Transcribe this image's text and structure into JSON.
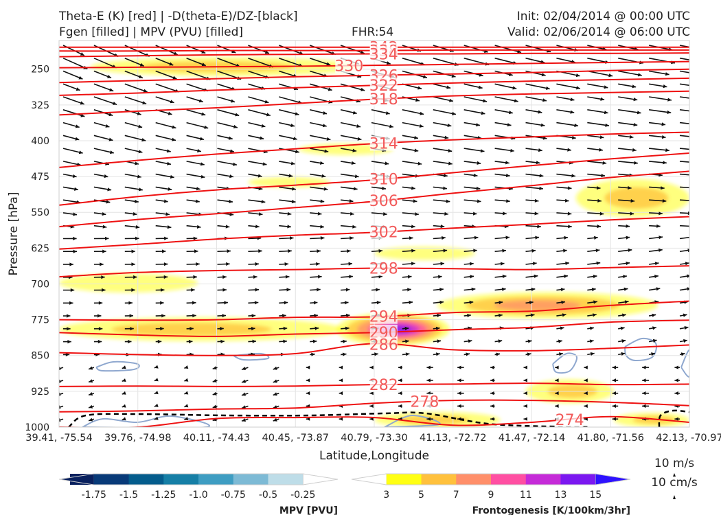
{
  "header": {
    "title_line1": "Theta-E (K) [red] | -D(theta-E)/DZ-[black]",
    "title_line2": "Fgen [filled] | MPV (PVU) [filled]",
    "fhr": "FHR:54",
    "init": "Init: 02/04/2014 @ 00:00 UTC",
    "valid": "Valid: 02/06/2014 @ 06:00 UTC"
  },
  "chart_data": {
    "type": "cross-section",
    "xlabel": "Latitude,Longitude",
    "ylabel": "Pressure [hPa]",
    "x_ticks": [
      "39.41, -75.54",
      "39.76, -74.98",
      "40.11, -74.43",
      "40.45, -73.87",
      "40.79, -73.30",
      "41.13, -72.72",
      "41.47, -72.14",
      "41.80, -71.56",
      "42.13, -70.97"
    ],
    "y_ticks": [
      250,
      325,
      400,
      475,
      550,
      625,
      700,
      775,
      850,
      925,
      1000
    ],
    "ylim": [
      1000,
      190
    ],
    "theta_e_contours": [
      {
        "label": "342",
        "y": [
          204,
          204,
          204,
          204,
          204,
          204,
          204,
          204,
          204
        ]
      },
      {
        "label": "338",
        "y": [
          212,
          212,
          211,
          211,
          211,
          210,
          210,
          210,
          210
        ]
      },
      {
        "label": "334",
        "y": [
          224,
          222,
          220,
          219,
          218,
          218,
          217,
          217,
          216
        ]
      },
      {
        "label": "330",
        "y": [
          247,
          246,
          245,
          244,
          242,
          240,
          238,
          236,
          234
        ]
      },
      {
        "label": "326",
        "y": [
          278,
          274,
          270,
          266,
          263,
          260,
          257,
          253,
          250
        ]
      },
      {
        "label": "322",
        "y": [
          305,
          300,
          294,
          289,
          284,
          279,
          275,
          272,
          269
        ]
      },
      {
        "label": "318",
        "y": [
          346,
          338,
          331,
          322,
          313,
          306,
          302,
          299,
          296
        ]
      },
      {
        "label": "314",
        "y": [
          456,
          441,
          428,
          417,
          406,
          398,
          392,
          386,
          382
        ]
      },
      {
        "label": "310",
        "y": [
          535,
          517,
          503,
          493,
          482,
          467,
          452,
          438,
          426
        ]
      },
      {
        "label": "306",
        "y": [
          580,
          565,
          553,
          540,
          527,
          510,
          494,
          477,
          464
        ]
      },
      {
        "label": "302",
        "y": [
          627,
          617,
          606,
          598,
          592,
          583,
          575,
          566,
          559
        ]
      },
      {
        "label": "298",
        "y": [
          685,
          676,
          672,
          670,
          667,
          668,
          670,
          666,
          662
        ]
      },
      {
        "label": "294",
        "y": [
          775,
          776,
          775,
          770,
          769,
          760,
          757,
          745,
          736
        ]
      },
      {
        "label": "290",
        "y": [
          802,
          807,
          810,
          805,
          802,
          796,
          791,
          780,
          776
        ]
      },
      {
        "label": "286",
        "y": [
          844,
          848,
          850,
          846,
          825,
          838,
          840,
          835,
          828
        ]
      },
      {
        "label": "282",
        "y": [
          915,
          914,
          915,
          914,
          911,
          910,
          908,
          911,
          910
        ]
      },
      {
        "label": "278",
        "y": [
          968,
          966,
          962,
          960,
          950,
          944,
          944,
          948,
          955
        ]
      },
      {
        "label": "274",
        "y": [
          1000,
          1000,
          982,
          980,
          980,
          996,
          990,
          978,
          990
        ]
      }
    ],
    "mpv_colorbar": {
      "label": "MPV [PVU]",
      "ticks": [
        "-1.75",
        "-1.5",
        "-1.25",
        "-1.0",
        "-0.75",
        "-0.5",
        "-0.25"
      ],
      "colors": [
        "#08205e",
        "#083a78",
        "#045c8c",
        "#167fa6",
        "#3e9dc2",
        "#7dbad5",
        "#bedde8",
        "#ffffff"
      ]
    },
    "fgen_colorbar": {
      "label": "Frontogenesis [K/100km/3hr]",
      "ticks": [
        "3",
        "5",
        "7",
        "9",
        "11",
        "13",
        "15"
      ],
      "colors": [
        "#ffffff",
        "#ffff14",
        "#ffc13d",
        "#ff8f6a",
        "#ff4fa2",
        "#c52bd8",
        "#7b18f0",
        "#2e12ff"
      ]
    },
    "fgen_regions": [
      {
        "x": [
          0.05,
          0.48
        ],
        "p": 245,
        "half_height": 20,
        "levels": [
          3,
          5
        ]
      },
      {
        "x": [
          0.38,
          0.53
        ],
        "p": 418,
        "half_height": 12,
        "levels": [
          3
        ]
      },
      {
        "x": [
          0.3,
          0.43
        ],
        "p": 487,
        "half_height": 11,
        "levels": [
          3
        ]
      },
      {
        "x": [
          0.82,
          1.0
        ],
        "p": 520,
        "half_height": 40,
        "levels": [
          3,
          5
        ]
      },
      {
        "x": [
          0.5,
          0.66
        ],
        "p": 636,
        "half_height": 14,
        "levels": [
          3
        ]
      },
      {
        "x": [
          0.0,
          0.22
        ],
        "p": 698,
        "half_height": 20,
        "levels": [
          3
        ]
      },
      {
        "x": [
          0.0,
          0.45
        ],
        "p": 795,
        "half_height": 25,
        "levels": [
          3,
          5
        ]
      },
      {
        "x": [
          0.44,
          0.62
        ],
        "p": 795,
        "half_height": 35,
        "levels": [
          3,
          5,
          7,
          9,
          11,
          13
        ]
      },
      {
        "x": [
          0.6,
          0.95
        ],
        "p": 745,
        "half_height": 28,
        "levels": [
          3,
          5,
          7
        ]
      },
      {
        "x": [
          0.74,
          0.88
        ],
        "p": 925,
        "half_height": 25,
        "levels": [
          3,
          5
        ]
      },
      {
        "x": [
          0.5,
          0.7
        ],
        "p": 985,
        "half_height": 17,
        "levels": [
          3,
          5
        ]
      },
      {
        "x": [
          0.88,
          1.0
        ],
        "p": 985,
        "half_height": 15,
        "levels": [
          3,
          5
        ]
      }
    ],
    "wind_reference": [
      "10 m/s",
      "10 cm/s"
    ]
  }
}
